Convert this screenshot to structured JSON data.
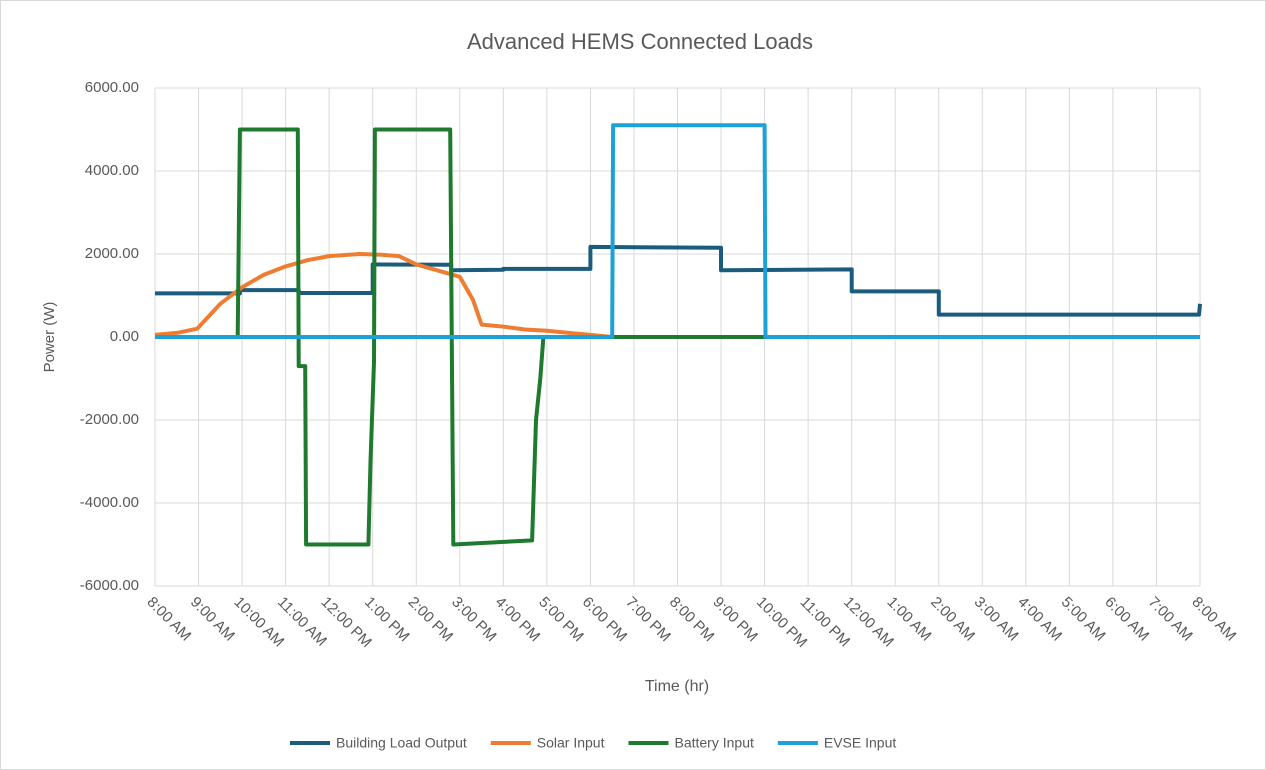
{
  "chart_data": {
    "type": "line",
    "title": "Advanced HEMS Connected Loads",
    "y_label": "Power (W)",
    "x_label": "Time (hr)",
    "xlim": [
      8,
      32
    ],
    "xticks": [
      {
        "value": 8,
        "label": "8:00 AM"
      },
      {
        "value": 9,
        "label": "9:00 AM"
      },
      {
        "value": 10,
        "label": "10:00 AM"
      },
      {
        "value": 11,
        "label": "11:00 AM"
      },
      {
        "value": 12,
        "label": "12:00 PM"
      },
      {
        "value": 13,
        "label": "1:00 PM"
      },
      {
        "value": 14,
        "label": "2:00 PM"
      },
      {
        "value": 15,
        "label": "3:00 PM"
      },
      {
        "value": 16,
        "label": "4:00 PM"
      },
      {
        "value": 17,
        "label": "5:00 PM"
      },
      {
        "value": 18,
        "label": "6:00 PM"
      },
      {
        "value": 19,
        "label": "7:00 PM"
      },
      {
        "value": 20,
        "label": "8:00 PM"
      },
      {
        "value": 21,
        "label": "9:00 PM"
      },
      {
        "value": 22,
        "label": "10:00 PM"
      },
      {
        "value": 23,
        "label": "11:00 PM"
      },
      {
        "value": 24,
        "label": "12:00 AM"
      },
      {
        "value": 25,
        "label": "1:00 AM"
      },
      {
        "value": 26,
        "label": "2:00 AM"
      },
      {
        "value": 27,
        "label": "3:00 AM"
      },
      {
        "value": 28,
        "label": "4:00 AM"
      },
      {
        "value": 29,
        "label": "5:00 AM"
      },
      {
        "value": 30,
        "label": "6:00 AM"
      },
      {
        "value": 31,
        "label": "7:00 AM"
      },
      {
        "value": 32,
        "label": "8:00 AM"
      }
    ],
    "ylim": [
      -6000,
      6000
    ],
    "yticks": [
      {
        "value": -6000,
        "label": "-6000.00"
      },
      {
        "value": -4000,
        "label": "-4000.00"
      },
      {
        "value": -2000,
        "label": "-2000.00"
      },
      {
        "value": 0,
        "label": "0.00"
      },
      {
        "value": 2000,
        "label": "2000.00"
      },
      {
        "value": 4000,
        "label": "4000.00"
      },
      {
        "value": 6000,
        "label": "6000.00"
      }
    ],
    "grid": true,
    "legend": "bottom",
    "series": [
      {
        "name": "Building Load Output",
        "color": "#1b5c7d",
        "x": [
          8,
          9.95,
          9.95,
          11.3,
          11.3,
          13,
          13,
          14.8,
          14.8,
          16,
          16,
          18,
          18,
          21,
          21,
          24,
          24,
          26,
          26,
          31.98,
          32
        ],
        "values": [
          1050,
          1050,
          1130,
          1130,
          1060,
          1060,
          1750,
          1740,
          1610,
          1620,
          1640,
          1640,
          2170,
          2150,
          1610,
          1630,
          1100,
          1100,
          540,
          540,
          800
        ]
      },
      {
        "name": "Solar Input",
        "color": "#ee7d31",
        "x": [
          8,
          8.5,
          8.97,
          9.5,
          10,
          10.5,
          11,
          11.5,
          12,
          12.7,
          13.2,
          13.6,
          14,
          14.5,
          15,
          15.3,
          15.5,
          16,
          16.5,
          17,
          17.5,
          18,
          18.5,
          32
        ],
        "values": [
          50,
          100,
          200,
          800,
          1200,
          1500,
          1700,
          1850,
          1950,
          2000,
          1980,
          1950,
          1750,
          1600,
          1450,
          900,
          300,
          250,
          180,
          150,
          100,
          50,
          0,
          0
        ]
      },
      {
        "name": "Battery Input",
        "color": "#1e7a2e",
        "x": [
          8,
          9.9,
          9.95,
          11.28,
          11.3,
          11.45,
          11.47,
          12.9,
          12.95,
          13.03,
          13.05,
          14.78,
          14.85,
          16.66,
          16.75,
          16.85,
          16.92,
          32
        ],
        "values": [
          0,
          0,
          5000,
          5000,
          -700,
          -700,
          -5000,
          -5000,
          -3000,
          -600,
          5000,
          5000,
          -5000,
          -4900,
          -2000,
          -1000,
          0,
          0
        ]
      },
      {
        "name": "EVSE Input",
        "color": "#1ea1d6",
        "x": [
          8,
          18.5,
          18.52,
          22,
          22.02,
          32
        ],
        "values": [
          0,
          0,
          5100,
          5100,
          0,
          0
        ]
      }
    ]
  }
}
